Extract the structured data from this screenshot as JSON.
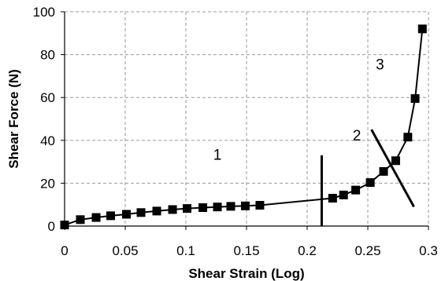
{
  "chart_data": {
    "type": "scatter",
    "title": "",
    "xlabel": "Shear Strain (Log)",
    "ylabel": "Shear Force (N)",
    "xlim": [
      0,
      0.3
    ],
    "ylim": [
      0,
      100
    ],
    "xticks": [
      0,
      0.05,
      0.1,
      0.15,
      0.2,
      0.25,
      0.3
    ],
    "xtick_labels": [
      "0",
      "0.05",
      "0.1",
      "0.15",
      "0.2",
      "0.25",
      "0.3"
    ],
    "yticks": [
      0,
      20,
      40,
      60,
      80,
      100
    ],
    "ytick_labels": [
      "0",
      "20",
      "40",
      "60",
      "80",
      "100"
    ],
    "grid": true,
    "legend": "none",
    "series": [
      {
        "marker": "square",
        "line": true,
        "x": [
          0,
          0.013,
          0.026,
          0.038,
          0.051,
          0.063,
          0.076,
          0.089,
          0.101,
          0.114,
          0.126,
          0.137,
          0.149,
          0.161,
          0.221,
          0.23,
          0.24,
          0.252,
          0.263,
          0.273,
          0.283,
          0.289,
          0.295
        ],
        "y": [
          0.5,
          3,
          4,
          4.8,
          5.5,
          6.3,
          7,
          7.7,
          8.2,
          8.6,
          8.9,
          9.2,
          9.4,
          9.7,
          13,
          14.5,
          16.8,
          20.3,
          25.5,
          30.5,
          41.5,
          59.5,
          92
        ]
      }
    ],
    "annotations": [
      {
        "text": "1",
        "x": 0.126,
        "y": 31
      },
      {
        "text": "2",
        "x": 0.241,
        "y": 40
      },
      {
        "text": "3",
        "x": 0.26,
        "y": 73
      }
    ],
    "dividers": [
      {
        "x1": 0.212,
        "y1": 0,
        "x2": 0.212,
        "y2": 33
      },
      {
        "x1": 0.253,
        "y1": 45,
        "x2": 0.288,
        "y2": 9
      }
    ]
  }
}
